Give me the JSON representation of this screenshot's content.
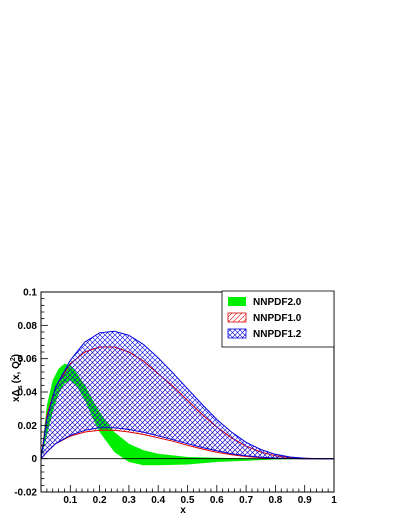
{
  "chart_data": {
    "type": "area",
    "xlabel": "x",
    "ylabel": "xΔs (x, Q0²)",
    "ylabel_parts": {
      "main": "x",
      "delta": "Δ",
      "sub": "s",
      "args": "(x, Q",
      "sup": "2",
      "sub0": "0",
      "close": ")"
    },
    "xlim": [
      0,
      1
    ],
    "ylim": [
      -0.02,
      0.1
    ],
    "x_ticks": [
      0.1,
      0.2,
      0.3,
      0.4,
      0.5,
      0.6,
      0.7,
      0.8,
      0.9,
      1
    ],
    "x_tick_labels": [
      "0.1",
      "0.2",
      "0.3",
      "0.4",
      "0.5",
      "0.6",
      "0.7",
      "0.8",
      "0.9",
      "1"
    ],
    "y_ticks": [
      -0.02,
      0,
      0.02,
      0.04,
      0.06,
      0.08,
      0.1
    ],
    "y_tick_labels": [
      "-0.02",
      "0",
      "0.02",
      "0.04",
      "0.06",
      "0.08",
      "0.1"
    ],
    "legend_position": "top-right",
    "series": [
      {
        "name": "NNPDF2.0",
        "style": "solid",
        "color": "#00ee00",
        "x": [
          0.0,
          0.02,
          0.04,
          0.06,
          0.08,
          0.1,
          0.12,
          0.15,
          0.18,
          0.2,
          0.25,
          0.3,
          0.35,
          0.4,
          0.5,
          0.6,
          0.7,
          0.8,
          0.9,
          1.0
        ],
        "upper": [
          0.0,
          0.032,
          0.047,
          0.054,
          0.057,
          0.056,
          0.052,
          0.044,
          0.034,
          0.028,
          0.016,
          0.009,
          0.005,
          0.003,
          0.001,
          0.0005,
          0.0002,
          0.0001,
          0.0,
          0.0
        ],
        "lower": [
          0.0,
          0.014,
          0.028,
          0.039,
          0.045,
          0.047,
          0.044,
          0.035,
          0.023,
          0.016,
          0.004,
          -0.002,
          -0.004,
          -0.004,
          -0.0035,
          -0.002,
          -0.0012,
          -0.0005,
          -0.0002,
          0.0
        ]
      },
      {
        "name": "NNPDF1.0",
        "style": "hatch-diagonal",
        "color": "#e00000",
        "x": [
          0.0,
          0.02,
          0.05,
          0.1,
          0.15,
          0.2,
          0.25,
          0.3,
          0.35,
          0.4,
          0.45,
          0.5,
          0.55,
          0.6,
          0.65,
          0.7,
          0.75,
          0.8,
          0.85,
          0.9,
          0.95,
          1.0
        ],
        "upper": [
          0.0,
          0.026,
          0.043,
          0.057,
          0.064,
          0.067,
          0.067,
          0.064,
          0.0585,
          0.051,
          0.0435,
          0.035,
          0.0265,
          0.019,
          0.0125,
          0.0075,
          0.004,
          0.0018,
          0.0006,
          0.0002,
          0.0,
          0.0
        ],
        "lower": [
          0.0,
          0.004,
          0.009,
          0.0135,
          0.016,
          0.017,
          0.017,
          0.016,
          0.0145,
          0.0125,
          0.0105,
          0.008,
          0.0058,
          0.0038,
          0.0023,
          0.0013,
          0.0006,
          0.0002,
          0.0001,
          0.0,
          0.0,
          0.0
        ]
      },
      {
        "name": "NNPDF1.2",
        "style": "hatch-crossed",
        "color": "#0000e0",
        "x": [
          0.0,
          0.02,
          0.05,
          0.1,
          0.15,
          0.2,
          0.25,
          0.3,
          0.35,
          0.4,
          0.45,
          0.5,
          0.55,
          0.6,
          0.65,
          0.7,
          0.75,
          0.8,
          0.85,
          0.9,
          0.95,
          1.0
        ],
        "upper": [
          0.0,
          0.024,
          0.043,
          0.059,
          0.07,
          0.0755,
          0.0765,
          0.074,
          0.0685,
          0.0605,
          0.0515,
          0.042,
          0.0325,
          0.0235,
          0.016,
          0.0098,
          0.0055,
          0.0026,
          0.001,
          0.0003,
          0.0,
          0.0
        ],
        "lower": [
          0.0,
          0.004,
          0.009,
          0.014,
          0.017,
          0.0185,
          0.0185,
          0.0175,
          0.0158,
          0.0137,
          0.0114,
          0.009,
          0.0067,
          0.0047,
          0.003,
          0.0018,
          0.0009,
          0.0004,
          0.0001,
          0.0,
          0.0,
          0.0
        ]
      }
    ]
  }
}
